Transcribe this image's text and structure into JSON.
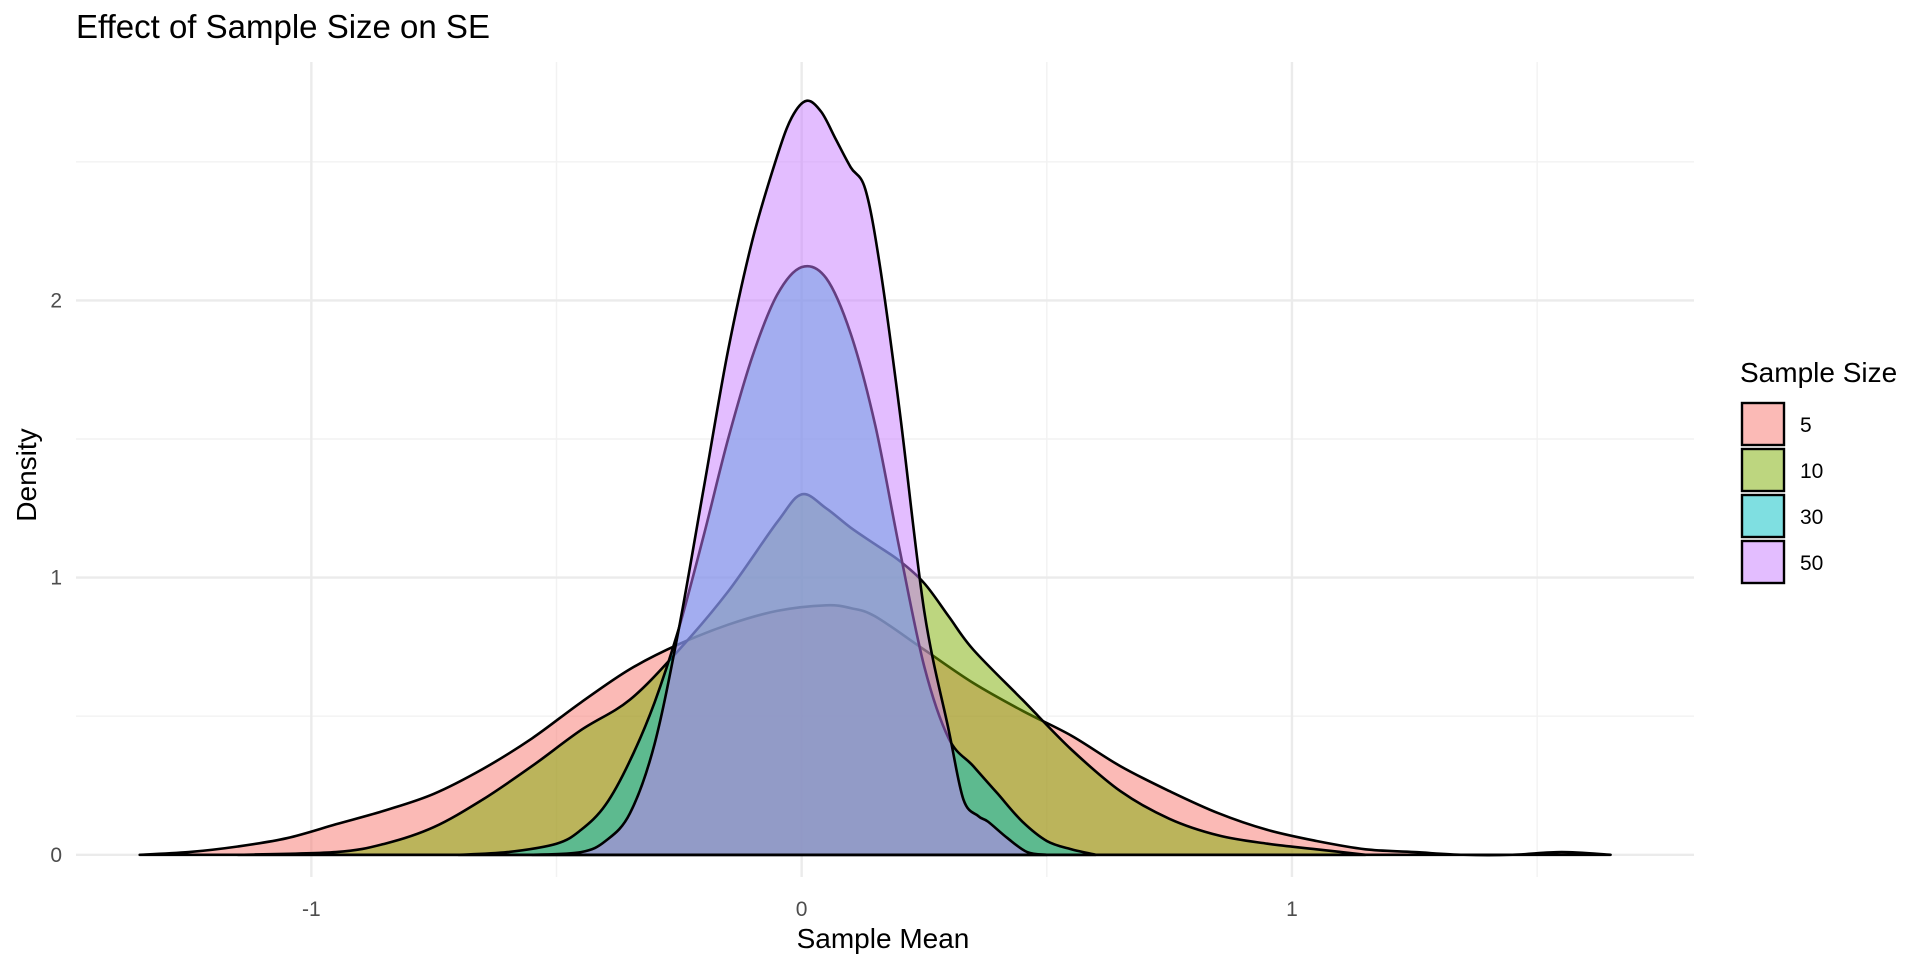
{
  "chart_data": {
    "type": "area",
    "title": "Effect of Sample Size on SE",
    "xlabel": "Sample Mean",
    "ylabel": "Density",
    "xlim": [
      -1.48,
      1.82
    ],
    "ylim": [
      -0.08,
      2.86
    ],
    "x_ticks": [
      {
        "value": -1,
        "label": "-1"
      },
      {
        "value": 0,
        "label": "0"
      },
      {
        "value": 1,
        "label": "1"
      }
    ],
    "x_minor": [
      -0.5,
      0.5,
      1.5
    ],
    "y_ticks": [
      {
        "value": 0,
        "label": "0"
      },
      {
        "value": 1,
        "label": "1"
      },
      {
        "value": 2,
        "label": "2"
      }
    ],
    "y_minor": [
      0.5,
      1.5,
      2.5
    ],
    "grid": true,
    "legend": {
      "title": "Sample Size",
      "position": "right"
    },
    "series": [
      {
        "name": "5",
        "color": "#F8766D",
        "points": [
          [
            -1.35,
            0.0
          ],
          [
            -1.25,
            0.01
          ],
          [
            -1.15,
            0.03
          ],
          [
            -1.05,
            0.06
          ],
          [
            -0.95,
            0.11
          ],
          [
            -0.85,
            0.16
          ],
          [
            -0.75,
            0.22
          ],
          [
            -0.65,
            0.31
          ],
          [
            -0.55,
            0.42
          ],
          [
            -0.45,
            0.55
          ],
          [
            -0.35,
            0.67
          ],
          [
            -0.25,
            0.76
          ],
          [
            -0.15,
            0.83
          ],
          [
            -0.05,
            0.88
          ],
          [
            0.05,
            0.9
          ],
          [
            0.1,
            0.89
          ],
          [
            0.15,
            0.86
          ],
          [
            0.25,
            0.74
          ],
          [
            0.35,
            0.62
          ],
          [
            0.45,
            0.52
          ],
          [
            0.55,
            0.43
          ],
          [
            0.65,
            0.32
          ],
          [
            0.75,
            0.23
          ],
          [
            0.85,
            0.15
          ],
          [
            0.95,
            0.09
          ],
          [
            1.05,
            0.05
          ],
          [
            1.15,
            0.02
          ],
          [
            1.25,
            0.01
          ],
          [
            1.35,
            0.0
          ],
          [
            1.45,
            0.0
          ],
          [
            1.55,
            0.01
          ],
          [
            1.65,
            0.0
          ]
        ]
      },
      {
        "name": "10",
        "color": "#7CAE00",
        "points": [
          [
            -1.15,
            0.0
          ],
          [
            -0.95,
            0.01
          ],
          [
            -0.85,
            0.04
          ],
          [
            -0.75,
            0.1
          ],
          [
            -0.65,
            0.2
          ],
          [
            -0.55,
            0.32
          ],
          [
            -0.45,
            0.45
          ],
          [
            -0.35,
            0.56
          ],
          [
            -0.25,
            0.74
          ],
          [
            -0.15,
            0.95
          ],
          [
            -0.05,
            1.2
          ],
          [
            0.0,
            1.3
          ],
          [
            0.05,
            1.25
          ],
          [
            0.1,
            1.18
          ],
          [
            0.15,
            1.12
          ],
          [
            0.2,
            1.06
          ],
          [
            0.25,
            0.98
          ],
          [
            0.3,
            0.86
          ],
          [
            0.35,
            0.74
          ],
          [
            0.45,
            0.56
          ],
          [
            0.55,
            0.38
          ],
          [
            0.65,
            0.23
          ],
          [
            0.75,
            0.13
          ],
          [
            0.85,
            0.07
          ],
          [
            0.95,
            0.04
          ],
          [
            1.05,
            0.02
          ],
          [
            1.15,
            0.0
          ]
        ]
      },
      {
        "name": "30",
        "color": "#00BFC4",
        "points": [
          [
            -0.7,
            0.0
          ],
          [
            -0.6,
            0.01
          ],
          [
            -0.5,
            0.04
          ],
          [
            -0.45,
            0.09
          ],
          [
            -0.4,
            0.18
          ],
          [
            -0.35,
            0.34
          ],
          [
            -0.3,
            0.55
          ],
          [
            -0.25,
            0.82
          ],
          [
            -0.2,
            1.15
          ],
          [
            -0.15,
            1.5
          ],
          [
            -0.1,
            1.8
          ],
          [
            -0.05,
            2.02
          ],
          [
            0.0,
            2.12
          ],
          [
            0.05,
            2.08
          ],
          [
            0.1,
            1.88
          ],
          [
            0.15,
            1.55
          ],
          [
            0.2,
            1.1
          ],
          [
            0.25,
            0.68
          ],
          [
            0.3,
            0.42
          ],
          [
            0.35,
            0.32
          ],
          [
            0.4,
            0.22
          ],
          [
            0.45,
            0.12
          ],
          [
            0.5,
            0.05
          ],
          [
            0.55,
            0.02
          ],
          [
            0.6,
            0.0
          ]
        ]
      },
      {
        "name": "50",
        "color": "#C77CFF",
        "points": [
          [
            -0.55,
            0.0
          ],
          [
            -0.45,
            0.01
          ],
          [
            -0.4,
            0.05
          ],
          [
            -0.35,
            0.15
          ],
          [
            -0.3,
            0.4
          ],
          [
            -0.25,
            0.82
          ],
          [
            -0.2,
            1.32
          ],
          [
            -0.15,
            1.82
          ],
          [
            -0.1,
            2.22
          ],
          [
            -0.05,
            2.52
          ],
          [
            -0.02,
            2.66
          ],
          [
            0.01,
            2.72
          ],
          [
            0.04,
            2.68
          ],
          [
            0.07,
            2.58
          ],
          [
            0.1,
            2.48
          ],
          [
            0.13,
            2.4
          ],
          [
            0.16,
            2.12
          ],
          [
            0.2,
            1.6
          ],
          [
            0.25,
            0.88
          ],
          [
            0.3,
            0.45
          ],
          [
            0.33,
            0.2
          ],
          [
            0.36,
            0.14
          ],
          [
            0.38,
            0.12
          ],
          [
            0.42,
            0.06
          ],
          [
            0.46,
            0.01
          ],
          [
            0.5,
            0.0
          ]
        ]
      }
    ]
  }
}
